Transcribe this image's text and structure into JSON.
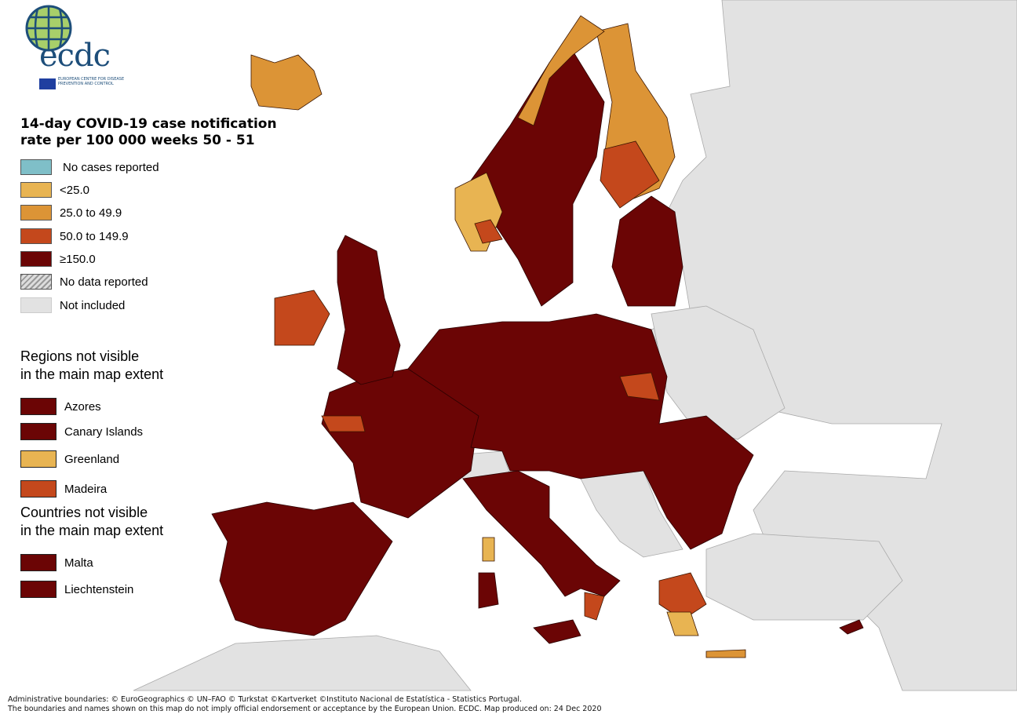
{
  "logo": {
    "wordmark": "ecdc",
    "subtitle": "EUROPEAN CENTRE FOR DISEASE PREVENTION AND CONTROL"
  },
  "title": {
    "line1": "14-day COVID-19 case notification",
    "line2": "rate per 100 000 weeks 50 - 51"
  },
  "legend": [
    {
      "label": "No cases reported",
      "color": "#7fbfc8"
    },
    {
      "label": "<25.0",
      "color": "#e8b452"
    },
    {
      "label": "25.0 to 49.9",
      "color": "#dc9436"
    },
    {
      "label": "50.0 to 149.9",
      "color": "#c4481c"
    },
    {
      "label": "≥150.0",
      "color": "#6b0505"
    },
    {
      "label": "No data reported",
      "color": "hatched"
    },
    {
      "label": "Not included",
      "color": "#e2e2e2"
    }
  ],
  "regions_section": {
    "line1": "Regions not visible",
    "line2": "in the main map extent",
    "items": [
      {
        "label": "Azores",
        "color": "#6b0505"
      },
      {
        "label": "Canary Islands",
        "color": "#6b0505"
      },
      {
        "label": "Greenland",
        "color": "#e8b452"
      },
      {
        "label": "Madeira",
        "color": "#c4481c"
      }
    ]
  },
  "countries_section": {
    "line1": "Countries not visible",
    "line2": "in the main map extent",
    "items": [
      {
        "label": "Malta",
        "color": "#6b0505"
      },
      {
        "label": "Liechtenstein",
        "color": "#6b0505"
      }
    ]
  },
  "footer": {
    "line1": "Administrative boundaries: © EuroGeographics © UN–FAO © Turkstat ©Kartverket ©Instituto Nacional de Estatística - Statistics Portugal.",
    "line2": "The boundaries and names shown on this map do not imply official endorsement or acceptance by the European Union. ECDC. Map produced on: 24 Dec 2020"
  }
}
